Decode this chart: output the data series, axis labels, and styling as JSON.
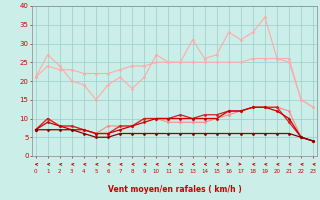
{
  "bg_color": "#cceee8",
  "grid_color": "#99cccc",
  "x_labels": [
    "0",
    "1",
    "2",
    "3",
    "4",
    "5",
    "6",
    "7",
    "8",
    "9",
    "10",
    "11",
    "12",
    "13",
    "14",
    "15",
    "16",
    "17",
    "18",
    "19",
    "20",
    "21",
    "22",
    "23"
  ],
  "xlabel": "Vent moyen/en rafales ( km/h )",
  "ylim": [
    0,
    40
  ],
  "yticks": [
    0,
    5,
    10,
    15,
    20,
    25,
    30,
    35,
    40
  ],
  "series": [
    {
      "name": "rafales_max",
      "color": "#ffaaaa",
      "lw": 0.8,
      "marker": "D",
      "ms": 1.5,
      "data": [
        21,
        27,
        24,
        20,
        19,
        15,
        19,
        21,
        18,
        21,
        27,
        25,
        25,
        31,
        26,
        27,
        33,
        31,
        33,
        37,
        26,
        25,
        15,
        13
      ]
    },
    {
      "name": "rafales_mean",
      "color": "#ffaaaa",
      "lw": 0.8,
      "marker": "D",
      "ms": 1.5,
      "data": [
        21,
        24,
        23,
        23,
        22,
        22,
        22,
        23,
        24,
        24,
        25,
        25,
        25,
        25,
        25,
        25,
        25,
        25,
        26,
        26,
        26,
        26,
        15,
        13
      ]
    },
    {
      "name": "vent_max_pink",
      "color": "#ff8888",
      "lw": 0.8,
      "marker": "D",
      "ms": 1.5,
      "data": [
        7,
        10,
        8,
        8,
        7,
        6,
        8,
        8,
        8,
        10,
        10,
        9,
        9,
        9,
        9,
        10,
        11,
        12,
        13,
        13,
        13,
        12,
        5,
        4
      ]
    },
    {
      "name": "vent_moyen_top",
      "color": "#cc2222",
      "lw": 0.9,
      "marker": "D",
      "ms": 1.5,
      "data": [
        7,
        10,
        8,
        8,
        7,
        6,
        6,
        8,
        8,
        10,
        10,
        10,
        11,
        10,
        11,
        11,
        12,
        12,
        13,
        13,
        13,
        9,
        5,
        4
      ]
    },
    {
      "name": "vent_moyen_mid",
      "color": "#cc0000",
      "lw": 0.9,
      "marker": "D",
      "ms": 1.5,
      "data": [
        7,
        9,
        8,
        7,
        7,
        6,
        6,
        7,
        8,
        9,
        10,
        10,
        10,
        10,
        10,
        10,
        12,
        12,
        13,
        13,
        12,
        10,
        5,
        4
      ]
    },
    {
      "name": "vent_moyen_low",
      "color": "#880000",
      "lw": 0.9,
      "marker": "D",
      "ms": 1.5,
      "data": [
        7,
        7,
        7,
        7,
        6,
        5,
        5,
        6,
        6,
        6,
        6,
        6,
        6,
        6,
        6,
        6,
        6,
        6,
        6,
        6,
        6,
        6,
        5,
        4
      ]
    }
  ],
  "tick_color": "#cc0000",
  "label_color": "#cc0000",
  "axis_color": "#cc0000",
  "spine_color": "#888888"
}
